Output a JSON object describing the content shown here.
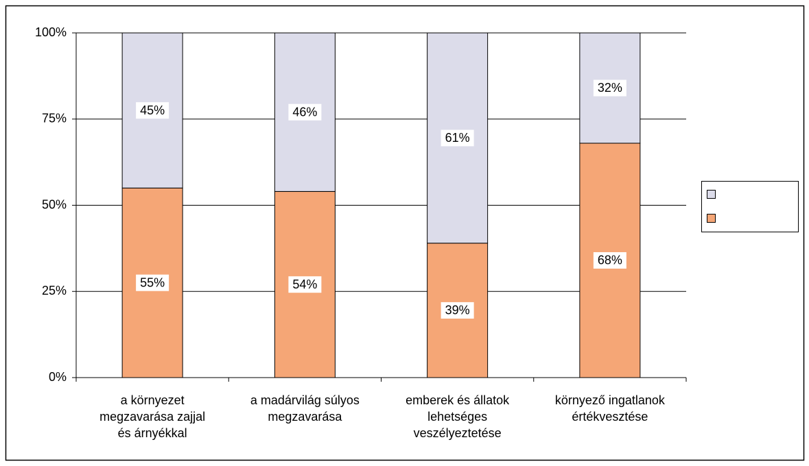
{
  "chart_data": {
    "type": "stacked_bar",
    "categories": [
      "a környezet megzavarása zajjal és árnyékkal",
      "a madárvilág súlyos megzavarása",
      "emberek és állatok lehetséges veszélyeztetése",
      "környező ingatlanok értékvesztése"
    ],
    "series": [
      {
        "color": "#f5a676",
        "values": [
          55,
          54,
          39,
          68
        ],
        "value_labels": [
          "55%",
          "54%",
          "39%",
          "68%"
        ]
      },
      {
        "color": "#dcdcea",
        "values": [
          45,
          46,
          61,
          32
        ],
        "value_labels": [
          "45%",
          "46%",
          "61%",
          "32%"
        ]
      }
    ],
    "ylim": [
      0,
      100
    ],
    "yticks": [
      {
        "value": 0,
        "label": "0%"
      },
      {
        "value": 25,
        "label": "25%"
      },
      {
        "value": 50,
        "label": "50%"
      },
      {
        "value": 75,
        "label": "75%"
      },
      {
        "value": 100,
        "label": "100%"
      }
    ],
    "grid": true,
    "legend": "right"
  }
}
